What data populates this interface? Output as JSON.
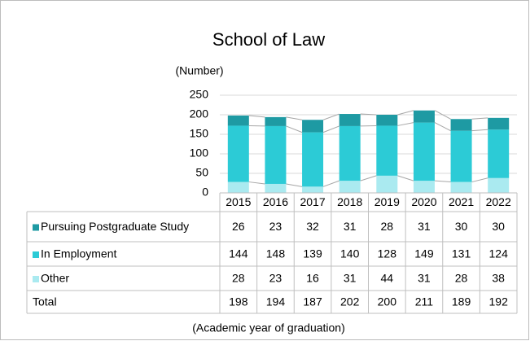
{
  "chart_data": {
    "type": "stacked_bar_table",
    "title": "School of Law",
    "y_label": "(Number)",
    "x_label": "(Academic year of graduation)",
    "categories": [
      "2015",
      "2016",
      "2017",
      "2018",
      "2019",
      "2020",
      "2021",
      "2022"
    ],
    "series": [
      {
        "name": "Pursuing Postgraduate Study",
        "color": "#1e9aa3",
        "values": [
          26,
          23,
          32,
          31,
          28,
          31,
          30,
          30
        ]
      },
      {
        "name": "In Employment",
        "color": "#2ccbd6",
        "values": [
          144,
          148,
          139,
          140,
          128,
          149,
          131,
          124
        ]
      },
      {
        "name": "Other",
        "color": "#aaeaf0",
        "values": [
          28,
          23,
          16,
          31,
          44,
          31,
          28,
          38
        ]
      }
    ],
    "totals_label": "Total",
    "totals": [
      198,
      194,
      187,
      202,
      200,
      211,
      189,
      192
    ],
    "ylim": [
      0,
      250
    ],
    "yticks": [
      0,
      50,
      100,
      150,
      200,
      250
    ],
    "grid": true
  }
}
